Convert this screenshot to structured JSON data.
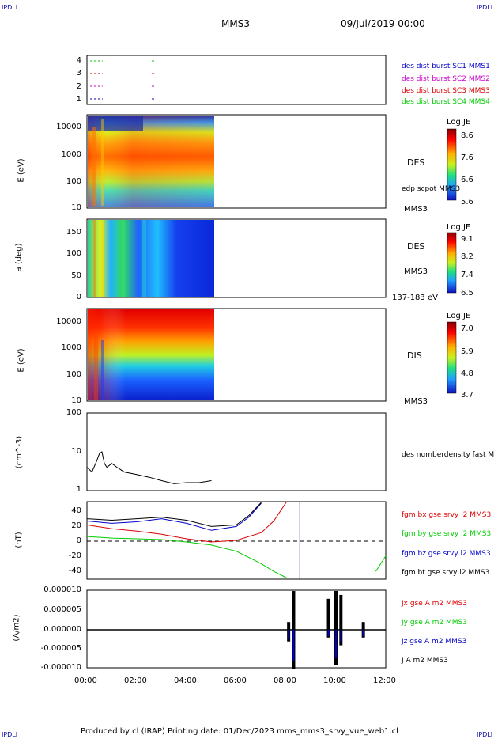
{
  "corner_label": "IPDLI",
  "header": {
    "spacecraft": "MMS3",
    "date": "09/Jul/2019 00:00"
  },
  "footer": {
    "text": "Produced by cl (IRAP)   Printing date: 01/Dec/2023   mms_mms3_srvy_vue_web1.cl"
  },
  "colors": {
    "black": "#000000",
    "red": "#dd0000",
    "green": "#00cc00",
    "blue": "#0000cc",
    "magenta": "#cc00cc",
    "dark_blue": "#0000aa"
  },
  "panels": {
    "burst": {
      "yticks": [
        "4",
        "3",
        "2",
        "1"
      ],
      "legend": [
        {
          "text": "des dist burst SC1 MMS1",
          "color": "#0000cc"
        },
        {
          "text": "des dist burst SC2 MMS2",
          "color": "#cc00cc"
        },
        {
          "text": "des dist burst SC3 MMS3",
          "color": "#dd0000"
        },
        {
          "text": "des dist burst SC4 MMS4",
          "color": "#00cc00"
        }
      ]
    },
    "des_energy": {
      "ylabel": "E (eV)",
      "yticks": [
        "10000",
        "1000",
        "100",
        "10"
      ],
      "right_label": "DES",
      "overlay_label": "edp scpot MMS3",
      "sc_label": "MMS3",
      "colorbar": {
        "title": "Log JE",
        "ticks": [
          "8.6",
          "7.6",
          "6.6",
          "5.6"
        ]
      }
    },
    "des_pitch": {
      "ylabel": "a (deg)",
      "yticks": [
        "150",
        "100",
        "50",
        "0"
      ],
      "right_label": "DES",
      "sc_label": "MMS3",
      "energy_range": "137-183 eV",
      "colorbar": {
        "title": "Log JE",
        "ticks": [
          "9.1",
          "8.2",
          "7.4",
          "6.5"
        ]
      }
    },
    "dis_energy": {
      "ylabel": "E (eV)",
      "yticks": [
        "10000",
        "1000",
        "100",
        "10"
      ],
      "right_label": "DIS",
      "sc_label": "MMS3",
      "colorbar": {
        "title": "Log JE",
        "ticks": [
          "7.0",
          "5.9",
          "4.8",
          "3.7"
        ]
      }
    },
    "density": {
      "ylabel": "(cm^-3)",
      "yticks": [
        "100",
        "10",
        "1"
      ],
      "legend": [
        {
          "text": "des numberdensity fast M",
          "color": "#000000"
        }
      ]
    },
    "bfield": {
      "ylabel": "(nT)",
      "yticks": [
        "40",
        "20",
        "0",
        "-20",
        "-40"
      ],
      "legend": [
        {
          "text": "fgm bx gse srvy l2 MMS3",
          "color": "#dd0000"
        },
        {
          "text": "fgm by gse srvy l2 MMS3",
          "color": "#00cc00"
        },
        {
          "text": "fgm bz gse srvy l2 MMS3",
          "color": "#0000cc"
        },
        {
          "text": "fgm bt gse srvy l2 MMS3",
          "color": "#000000"
        }
      ]
    },
    "current": {
      "ylabel": "(A/m2)",
      "yticks": [
        "0.000010",
        "0.000005",
        "0.000000",
        "-0.000005",
        "-0.000010"
      ],
      "legend": [
        {
          "text": "Jx gse A m2 MMS3",
          "color": "#dd0000"
        },
        {
          "text": "Jy gse A m2 MMS3",
          "color": "#00cc00"
        },
        {
          "text": "Jz gse A m2 MMS3",
          "color": "#0000cc"
        },
        {
          "text": "J A m2 MMS3",
          "color": "#000000"
        }
      ]
    }
  },
  "xaxis": {
    "ticks": [
      "00:00",
      "02:00",
      "04:00",
      "06:00",
      "08:00",
      "10:00",
      "12:00"
    ]
  },
  "chart_data": {
    "type": "line",
    "time_range_hours": [
      0,
      12
    ],
    "density_series": {
      "name": "des numberdensity fast M",
      "x_hours": [
        0.0,
        0.2,
        0.4,
        0.5,
        0.6,
        0.7,
        0.8,
        1.0,
        1.2,
        1.5,
        2.0,
        2.5,
        3.0,
        3.5,
        4.0,
        4.5,
        5.0
      ],
      "y": [
        4,
        3,
        6,
        9,
        10,
        5,
        4,
        5,
        4,
        3,
        2.6,
        2.2,
        1.8,
        1.5,
        1.6,
        1.6,
        1.8
      ],
      "ylim": [
        1,
        100
      ],
      "log": true
    },
    "bfield_series": [
      {
        "name": "fgm bx gse srvy l2 MMS3",
        "x_hours": [
          0,
          1,
          2,
          3,
          4,
          5,
          6,
          7,
          7.5,
          8.0
        ],
        "y": [
          20,
          15,
          12,
          8,
          2,
          -2,
          0,
          10,
          25,
          50
        ]
      },
      {
        "name": "fgm by gse srvy l2 MMS3",
        "x_hours": [
          0,
          1,
          2,
          3,
          4,
          5,
          6,
          6.5,
          7,
          7.5,
          8.0
        ],
        "y": [
          5,
          3,
          2,
          1,
          -2,
          -6,
          -14,
          -22,
          -30,
          -40,
          -48
        ]
      },
      {
        "name": "fgm bz gse srvy l2 MMS3",
        "x_hours": [
          0,
          1,
          2,
          3,
          4,
          5,
          6,
          6.5,
          7.0
        ],
        "y": [
          25,
          22,
          24,
          28,
          22,
          13,
          18,
          30,
          48
        ]
      },
      {
        "name": "fgm bt gse srvy l2 MMS3",
        "x_hours": [
          0,
          1,
          2,
          3,
          4,
          5,
          6,
          6.5,
          7.0
        ],
        "y": [
          28,
          26,
          28,
          30,
          26,
          18,
          20,
          32,
          50
        ]
      }
    ],
    "bfield_ylim": [
      -50,
      50
    ],
    "bfield_late_by": {
      "x_hours": [
        11.6,
        12.0
      ],
      "y": [
        -40,
        -20
      ]
    },
    "current_ylim": [
      -1e-05,
      1e-05
    ],
    "current_spikes": [
      {
        "x_hours": 8.1,
        "y": [
          -3e-06,
          2e-06
        ]
      },
      {
        "x_hours": 8.3,
        "y": [
          -1e-05,
          1e-05
        ]
      },
      {
        "x_hours": 9.7,
        "y": [
          -2e-06,
          8e-06
        ]
      },
      {
        "x_hours": 10.0,
        "y": [
          -9e-06,
          1e-05
        ]
      },
      {
        "x_hours": 10.2,
        "y": [
          -4e-06,
          9e-06
        ]
      },
      {
        "x_hours": 11.1,
        "y": [
          -2e-06,
          2e-06
        ]
      }
    ],
    "vertical_marker_hours": 8.55,
    "spectrogram_coverage_hours": [
      0,
      5.1
    ]
  }
}
